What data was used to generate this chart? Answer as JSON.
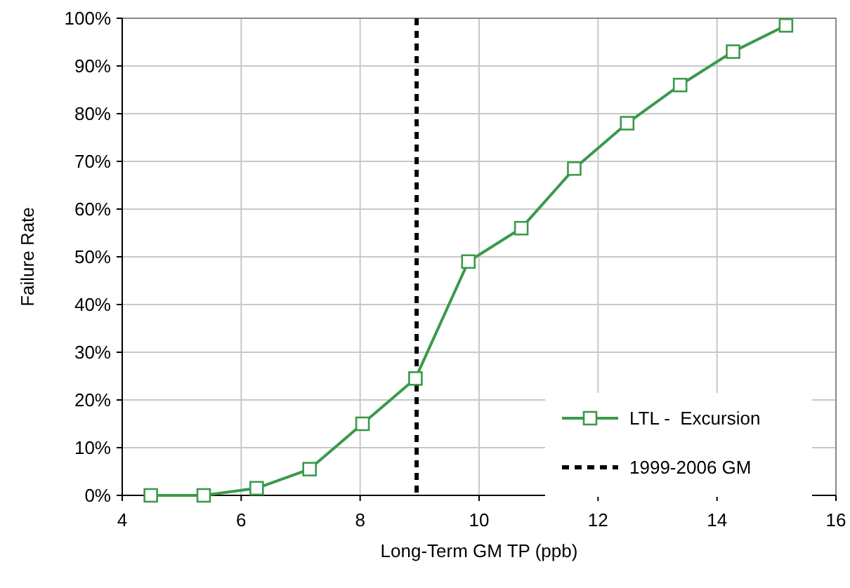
{
  "chart_data": {
    "type": "line",
    "xlabel": "Long-Term GM TP (ppb)",
    "ylabel": "Failure Rate",
    "x": [
      4.48,
      5.37,
      6.26,
      7.15,
      8.04,
      8.93,
      9.82,
      10.71,
      11.6,
      12.49,
      13.38,
      14.27,
      15.16
    ],
    "series": [
      {
        "name": "LTL -  Excursion",
        "color": "#3a9a4a",
        "values": [
          0,
          0,
          1.5,
          5.5,
          15,
          24.5,
          49,
          56,
          68.5,
          78,
          86,
          93,
          98.5
        ]
      }
    ],
    "xlim": [
      4,
      16
    ],
    "xticks": [
      4,
      6,
      8,
      10,
      12,
      14,
      16
    ],
    "ylim": [
      0,
      100
    ],
    "yticks": [
      {
        "value": 0,
        "label": "0%"
      },
      {
        "value": 10,
        "label": "10%"
      },
      {
        "value": 20,
        "label": "20%"
      },
      {
        "value": 30,
        "label": "30%"
      },
      {
        "value": 40,
        "label": "40%"
      },
      {
        "value": 50,
        "label": "50%"
      },
      {
        "value": 60,
        "label": "60%"
      },
      {
        "value": 70,
        "label": "70%"
      },
      {
        "value": 80,
        "label": "80%"
      },
      {
        "value": 90,
        "label": "90%"
      },
      {
        "value": 100,
        "label": "100%"
      }
    ],
    "ref_lines": [
      {
        "axis": "x",
        "value": 8.95,
        "label": "1999-2006 GM",
        "color": "#000000",
        "line_style": "dashed"
      }
    ],
    "grid": true,
    "legend": "bottom right",
    "marker": "square",
    "line_style": "solid"
  }
}
